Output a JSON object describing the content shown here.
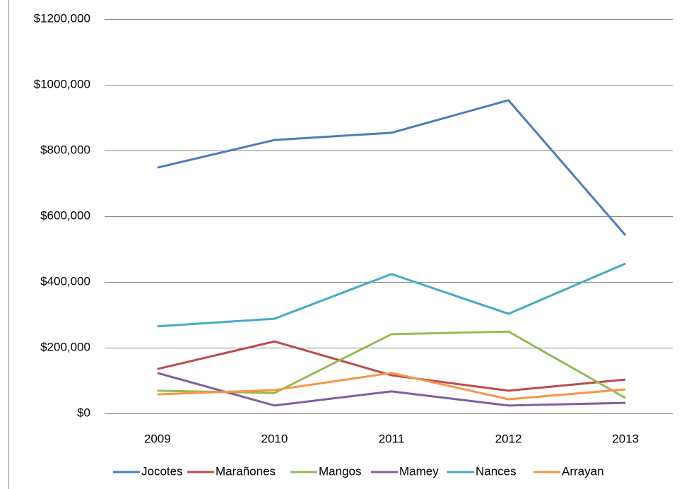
{
  "chart_data": {
    "type": "line",
    "categories": [
      "2009",
      "2010",
      "2011",
      "2012",
      "2013"
    ],
    "series": [
      {
        "name": "Jocotes",
        "color": "#4a7ebb",
        "values": [
          748000,
          832000,
          854000,
          953000,
          542000
        ]
      },
      {
        "name": "Marañones",
        "color": "#be4b48",
        "values": [
          135000,
          219000,
          116000,
          69000,
          103000
        ]
      },
      {
        "name": "Mangos",
        "color": "#98b954",
        "values": [
          69000,
          62000,
          241000,
          249000,
          47000
        ]
      },
      {
        "name": "Mamey",
        "color": "#7d60a0",
        "values": [
          123000,
          24000,
          67000,
          24000,
          32000
        ]
      },
      {
        "name": "Nances",
        "color": "#46aac5",
        "values": [
          265000,
          288000,
          424000,
          303000,
          456000
        ]
      },
      {
        "name": "Arrayan",
        "color": "#f79646",
        "values": [
          58000,
          71000,
          123000,
          43000,
          73000
        ]
      }
    ],
    "ylim": [
      0,
      1200000
    ],
    "yticks": [
      {
        "value": 0,
        "label": "$0"
      },
      {
        "value": 200000,
        "label": "$200,000"
      },
      {
        "value": 400000,
        "label": "$400,000"
      },
      {
        "value": 600000,
        "label": "$600,000"
      },
      {
        "value": 800000,
        "label": "$800,000"
      },
      {
        "value": 1000000,
        "label": "$1000,000"
      },
      {
        "value": 1200000,
        "label": "$1200,000"
      }
    ],
    "grid": true,
    "legend": "bottom"
  }
}
